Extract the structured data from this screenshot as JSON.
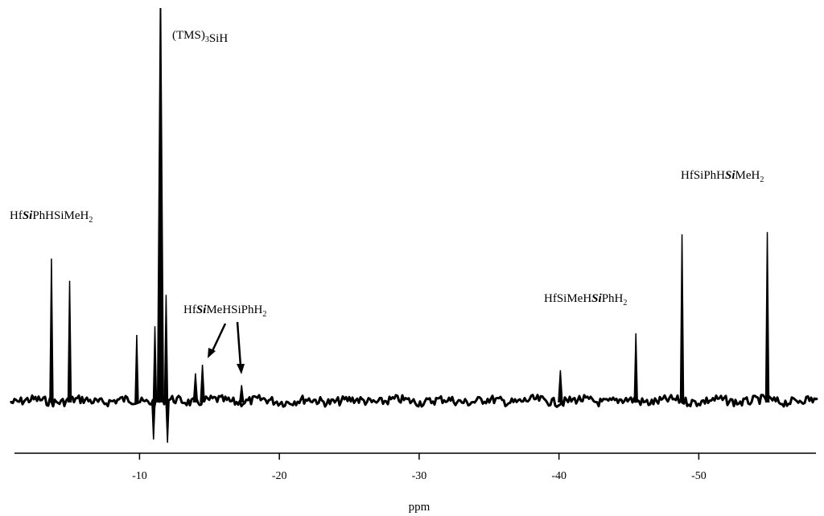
{
  "chart_data": {
    "type": "line",
    "title": "",
    "xlabel": "ppm",
    "ylabel": "",
    "xlim": [
      1,
      -58
    ],
    "x_reversed": true,
    "grid": false,
    "x_ticks": [
      {
        "value": -10,
        "label": "-10"
      },
      {
        "value": -20,
        "label": "-20"
      },
      {
        "value": -30,
        "label": "-30"
      },
      {
        "value": -40,
        "label": "-40"
      },
      {
        "value": -50,
        "label": "-50"
      }
    ],
    "peaks": [
      {
        "ppm": -3.7,
        "height": 0.362
      },
      {
        "ppm": -5.0,
        "height": 0.306
      },
      {
        "ppm": -9.8,
        "height": 0.168
      },
      {
        "ppm": -11.1,
        "height": 0.19
      },
      {
        "ppm": -11.5,
        "height": 1.0
      },
      {
        "ppm": -11.9,
        "height": 0.27
      },
      {
        "ppm": -14.0,
        "height": 0.07
      },
      {
        "ppm": -14.5,
        "height": 0.092
      },
      {
        "ppm": -17.3,
        "height": 0.04
      },
      {
        "ppm": -40.1,
        "height": 0.078
      },
      {
        "ppm": -45.5,
        "height": 0.172
      },
      {
        "ppm": -48.8,
        "height": 0.424
      },
      {
        "ppm": -54.9,
        "height": 0.43
      }
    ],
    "annotations": [
      {
        "id": "tms",
        "parts": [
          {
            "t": "(TMS)"
          },
          {
            "t": "3",
            "sub": true
          },
          {
            "t": "SiH"
          }
        ]
      },
      {
        "id": "hf-si-ph",
        "parts": [
          {
            "t": "Hf"
          },
          {
            "t": "Si",
            "em": true
          },
          {
            "t": "PhHSiMeH"
          },
          {
            "t": "2",
            "sub": true
          }
        ]
      },
      {
        "id": "hf-si-me",
        "parts": [
          {
            "t": "Hf"
          },
          {
            "t": "Si",
            "em": true
          },
          {
            "t": "MeHSiPhH"
          },
          {
            "t": "2",
            "sub": true
          }
        ]
      },
      {
        "id": "hf-sime-si",
        "parts": [
          {
            "t": "HfSiMeH"
          },
          {
            "t": "Si",
            "em": true
          },
          {
            "t": "PhH"
          },
          {
            "t": "2",
            "sub": true
          }
        ]
      },
      {
        "id": "hf-siph-si",
        "parts": [
          {
            "t": "HfSiPhH"
          },
          {
            "t": "Si",
            "em": true
          },
          {
            "t": "MeH"
          },
          {
            "t": "2",
            "sub": true
          }
        ]
      }
    ]
  }
}
